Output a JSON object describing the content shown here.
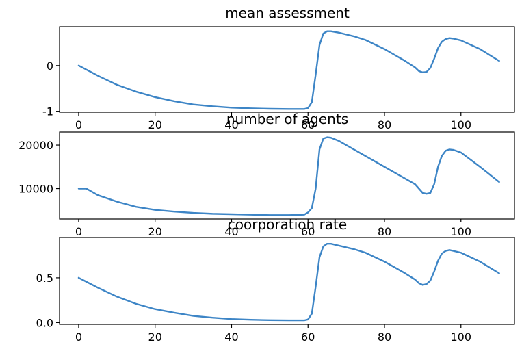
{
  "colors": {
    "series": "#3d85c6"
  },
  "chart_data": [
    {
      "type": "line",
      "title": "mean assessment",
      "xlabel": "",
      "ylabel": "",
      "xlim": [
        -5,
        114
      ],
      "ylim": [
        -1.02,
        0.85
      ],
      "x_ticks": [
        0,
        20,
        40,
        60,
        80,
        100
      ],
      "y_ticks": [
        -1,
        0
      ],
      "grid": false,
      "series": [
        {
          "x": [
            0,
            5,
            10,
            15,
            20,
            25,
            30,
            35,
            40,
            45,
            50,
            55,
            59,
            60,
            61,
            62,
            63,
            64,
            65,
            66,
            68,
            70,
            72,
            75,
            80,
            85,
            88,
            89,
            90,
            91,
            92,
            93,
            94,
            95,
            96,
            97,
            98,
            100,
            105,
            110
          ],
          "y": [
            0.0,
            -0.22,
            -0.42,
            -0.57,
            -0.69,
            -0.78,
            -0.85,
            -0.89,
            -0.92,
            -0.935,
            -0.945,
            -0.95,
            -0.95,
            -0.93,
            -0.8,
            -0.2,
            0.45,
            0.7,
            0.75,
            0.75,
            0.72,
            0.68,
            0.64,
            0.56,
            0.36,
            0.12,
            -0.04,
            -0.12,
            -0.15,
            -0.14,
            -0.05,
            0.15,
            0.38,
            0.52,
            0.58,
            0.6,
            0.59,
            0.55,
            0.36,
            0.1
          ]
        }
      ]
    },
    {
      "type": "line",
      "title": "number of agents",
      "xlabel": "",
      "ylabel": "",
      "xlim": [
        -5,
        114
      ],
      "ylim": [
        3000,
        23000
      ],
      "x_ticks": [
        0,
        20,
        40,
        60,
        80,
        100
      ],
      "y_ticks": [
        10000,
        20000
      ],
      "grid": false,
      "series": [
        {
          "x": [
            0,
            2,
            5,
            10,
            15,
            20,
            25,
            30,
            35,
            40,
            45,
            50,
            55,
            59,
            60,
            61,
            62,
            63,
            64,
            65,
            66,
            68,
            70,
            75,
            80,
            85,
            88,
            89,
            90,
            91,
            92,
            93,
            94,
            95,
            96,
            97,
            98,
            100,
            105,
            110
          ],
          "y": [
            10000,
            10000,
            8500,
            7000,
            5800,
            5100,
            4700,
            4400,
            4200,
            4100,
            4000,
            3900,
            3900,
            4000,
            4500,
            5500,
            10000,
            19000,
            21500,
            21800,
            21700,
            21000,
            20000,
            17500,
            15000,
            12500,
            11000,
            10000,
            9000,
            8800,
            9000,
            11000,
            15000,
            17500,
            18700,
            19000,
            18900,
            18300,
            15000,
            11500
          ]
        }
      ]
    },
    {
      "type": "line",
      "title": "coorporation rate",
      "xlabel": "",
      "ylabel": "",
      "xlim": [
        -5,
        114
      ],
      "ylim": [
        -0.02,
        0.95
      ],
      "x_ticks": [
        0,
        20,
        40,
        60,
        80,
        100
      ],
      "y_ticks": [
        0.0,
        0.5
      ],
      "grid": false,
      "series": [
        {
          "x": [
            0,
            5,
            10,
            15,
            20,
            25,
            30,
            35,
            40,
            45,
            50,
            55,
            59,
            60,
            61,
            62,
            63,
            64,
            65,
            66,
            68,
            70,
            72,
            75,
            80,
            85,
            88,
            89,
            90,
            91,
            92,
            93,
            94,
            95,
            96,
            97,
            98,
            100,
            105,
            110
          ],
          "y": [
            0.5,
            0.39,
            0.29,
            0.21,
            0.15,
            0.11,
            0.075,
            0.055,
            0.04,
            0.032,
            0.027,
            0.025,
            0.025,
            0.035,
            0.1,
            0.4,
            0.73,
            0.85,
            0.88,
            0.88,
            0.86,
            0.84,
            0.82,
            0.78,
            0.68,
            0.56,
            0.48,
            0.44,
            0.42,
            0.43,
            0.47,
            0.57,
            0.69,
            0.77,
            0.8,
            0.81,
            0.8,
            0.78,
            0.68,
            0.55
          ]
        }
      ]
    }
  ]
}
